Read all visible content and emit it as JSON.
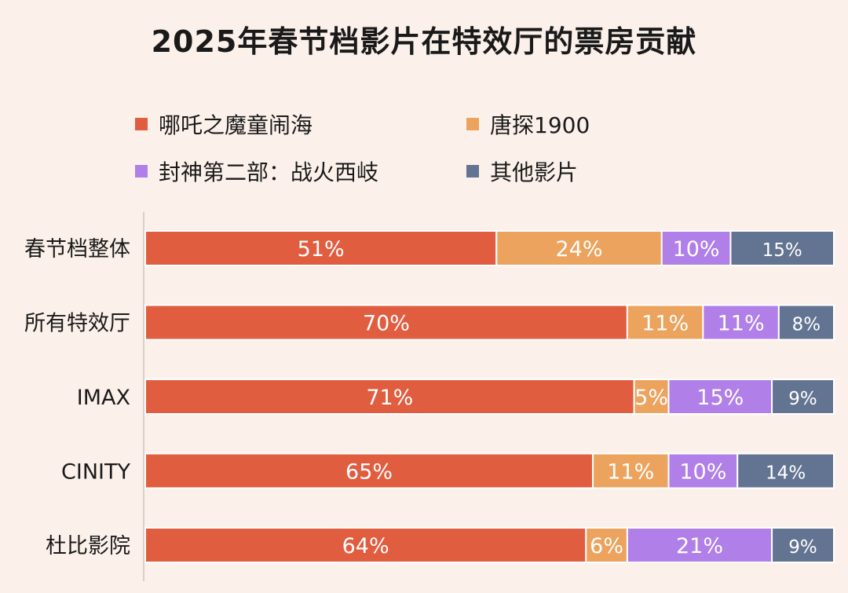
{
  "chart_data": {
    "type": "bar",
    "orientation": "horizontal",
    "stacked": true,
    "title": "2025年春节档影片在特效厅的票房贡献",
    "categories": [
      "春节档整体",
      "所有特效厅",
      "IMAX",
      "CINITY",
      "杜比影院"
    ],
    "series": [
      {
        "name": "哪吒之魔童闹海",
        "color": "#e05d40",
        "values": [
          51,
          70,
          71,
          65,
          64
        ]
      },
      {
        "name": "唐探1900",
        "color": "#eba35e",
        "values": [
          24,
          11,
          5,
          11,
          6
        ]
      },
      {
        "name": "封神第二部：战火西岐",
        "color": "#b07fe8",
        "values": [
          10,
          11,
          15,
          10,
          21
        ]
      },
      {
        "name": "其他影片",
        "color": "#637492",
        "values": [
          15,
          8,
          9,
          14,
          9
        ]
      }
    ],
    "data_labels": [
      [
        "51%",
        "24%",
        "10%",
        "15%"
      ],
      [
        "70%",
        "11%",
        "11%",
        "8%"
      ],
      [
        "71%",
        "5%",
        "15%",
        "9%"
      ],
      [
        "65%",
        "11%",
        "10%",
        "14%"
      ],
      [
        "64%",
        "6%",
        "21%",
        "9%"
      ]
    ],
    "legend_position": "top",
    "grid": false,
    "xlim": [
      0,
      100
    ]
  }
}
